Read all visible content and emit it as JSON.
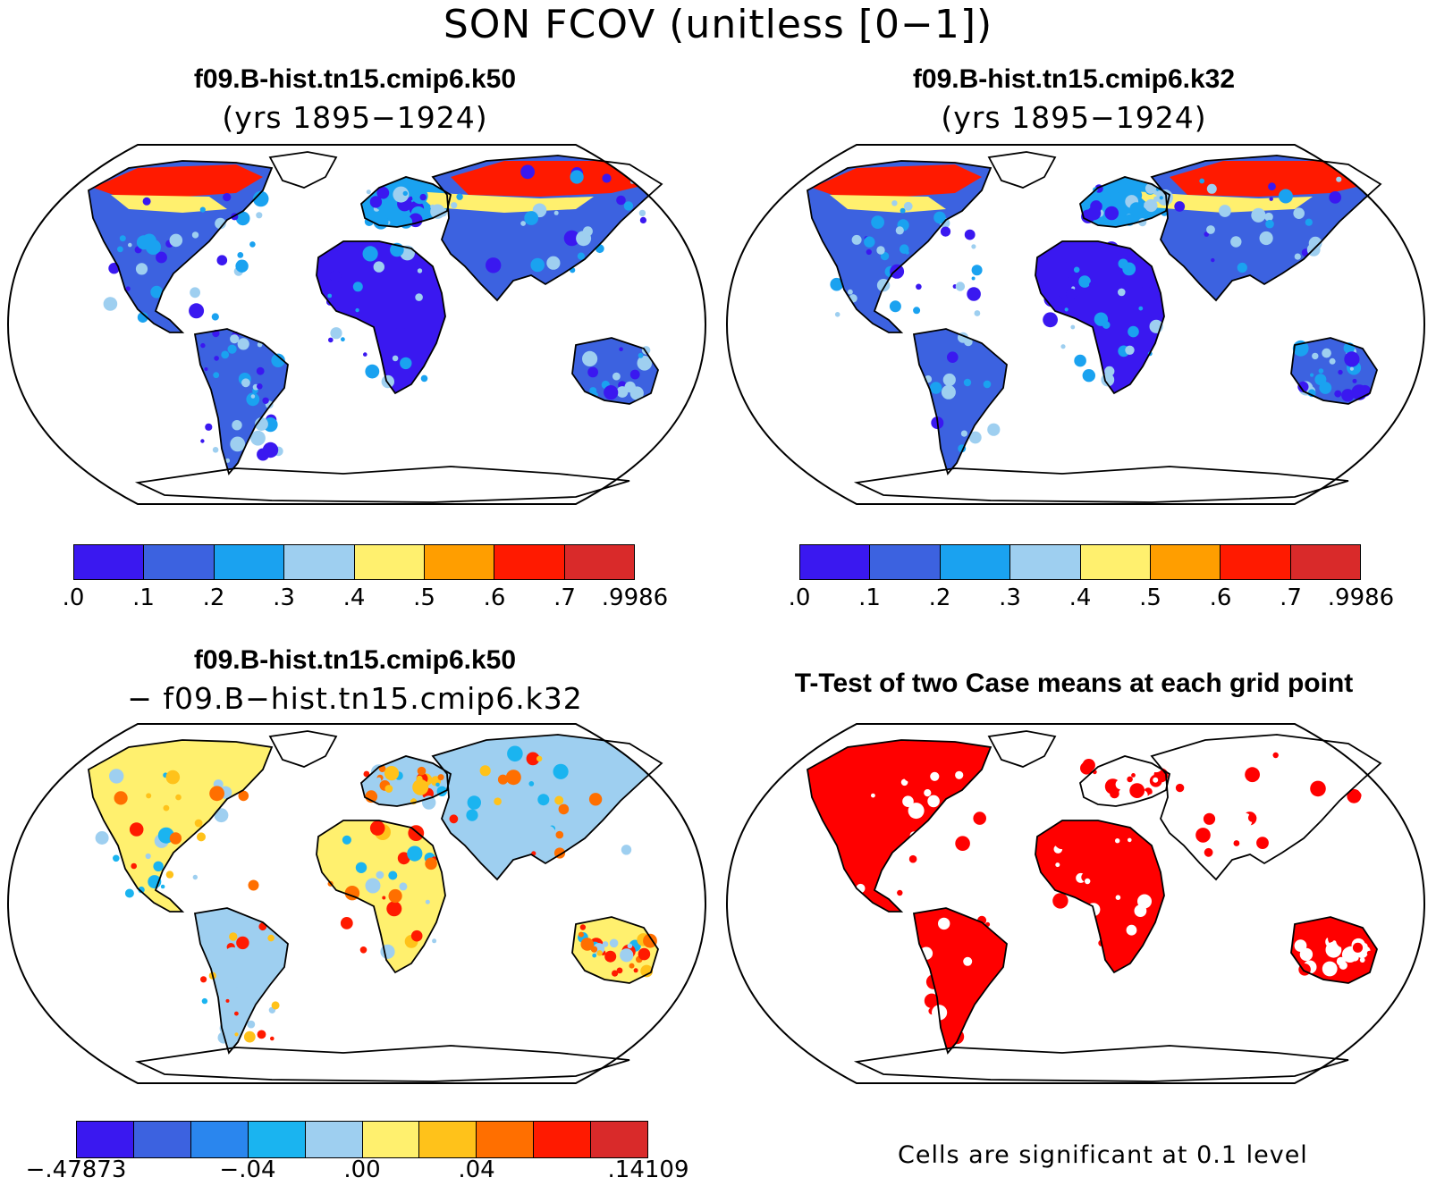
{
  "main_title": "SON FCOV (unitless [0−1])",
  "panels": [
    {
      "title": "f09.B-hist.tn15.cmip6.k50",
      "subtitle": "(yrs 1895−1924)"
    },
    {
      "title": "f09.B-hist.tn15.cmip6.k32",
      "subtitle": "(yrs 1895−1924)"
    },
    {
      "title": "f09.B-hist.tn15.cmip6.k50",
      "subtitle": "− f09.B−hist.tn15.cmip6.k32"
    },
    {
      "title": "T-Test of two Case means at each grid point",
      "subtitle": ""
    }
  ],
  "colorbar_abs": {
    "colors": [
      "#3a18f0",
      "#3c62e0",
      "#1aa2f0",
      "#9ecff0",
      "#fff06e",
      "#ff9e00",
      "#ff1a00",
      "#d92a2a"
    ],
    "ticks": [
      ".0",
      ".1",
      ".2",
      ".3",
      ".4",
      ".5",
      ".6",
      ".7",
      ".9986"
    ]
  },
  "colorbar_diff": {
    "colors": [
      "#3a18f0",
      "#3c62e0",
      "#2a86ee",
      "#1ab4f0",
      "#9ecff0",
      "#fff06e",
      "#ffc21a",
      "#ff6f00",
      "#ff1a00",
      "#d92a2a"
    ],
    "ticks": [
      "−.47873",
      "−.04",
      ".00",
      ".04",
      ".14109"
    ]
  },
  "significance_note": "Cells are significant at 0.1 level",
  "significance_color": "#ff0000"
}
